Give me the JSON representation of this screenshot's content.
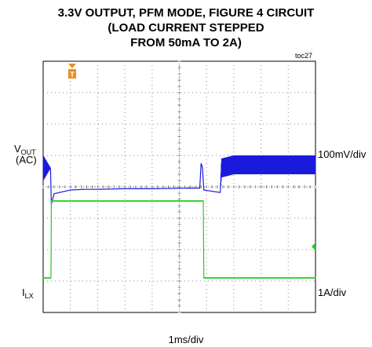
{
  "chart_data": {
    "type": "line",
    "title_lines": [
      "3.3V OUTPUT, PFM MODE, FIGURE 4 CIRCUIT",
      "(LOAD CURRENT STEPPED",
      "FROM 50mA TO 2A)"
    ],
    "figure_id": "toc27",
    "xlabel": "1ms/div",
    "x_divisions": 10,
    "y_divisions": 8,
    "grid": true,
    "trigger_marker": "T",
    "channels": [
      {
        "name_main": "V",
        "name_sub": "OUT",
        "name_suffix": "(AC)",
        "scale": "100mV/div",
        "color": "#1a1adc"
      },
      {
        "name_main": "I",
        "name_sub": "LX",
        "scale": "1A/div",
        "color": "#22cc22"
      }
    ],
    "series": [
      {
        "name": "VOUT",
        "x": [
          0,
          0.27,
          0.3,
          0.4,
          0.8,
          1.0,
          1.5,
          2.0,
          3.0,
          4.0,
          5.3,
          5.6,
          5.75,
          5.8,
          5.85,
          5.9,
          6.5,
          6.55,
          7.0,
          10.0
        ],
        "y": [
          0.6,
          0.6,
          -0.55,
          -0.22,
          -0.14,
          -0.1,
          -0.08,
          -0.08,
          -0.06,
          -0.06,
          -0.04,
          -0.04,
          -0.04,
          0.75,
          0.6,
          -0.1,
          -0.18,
          0.6,
          0.7,
          0.7
        ],
        "ripple_pp_div": [
          0.8,
          0.0,
          0.0,
          0.0,
          0.0,
          0.0,
          0.0,
          0.0,
          0.0,
          0.0,
          0.0,
          0.0,
          0.0,
          0.0,
          0.0,
          0.0,
          0.0,
          0.6,
          0.6,
          0.6
        ]
      },
      {
        "name": "ILX",
        "x": [
          0,
          0.29,
          0.3,
          1.0,
          2.0,
          4.0,
          5.88,
          5.9,
          7.0,
          10.0
        ],
        "y": [
          -2.9,
          -2.9,
          -0.45,
          -0.45,
          -0.45,
          -0.45,
          -0.45,
          -2.9,
          -2.9,
          -2.9
        ]
      }
    ]
  }
}
